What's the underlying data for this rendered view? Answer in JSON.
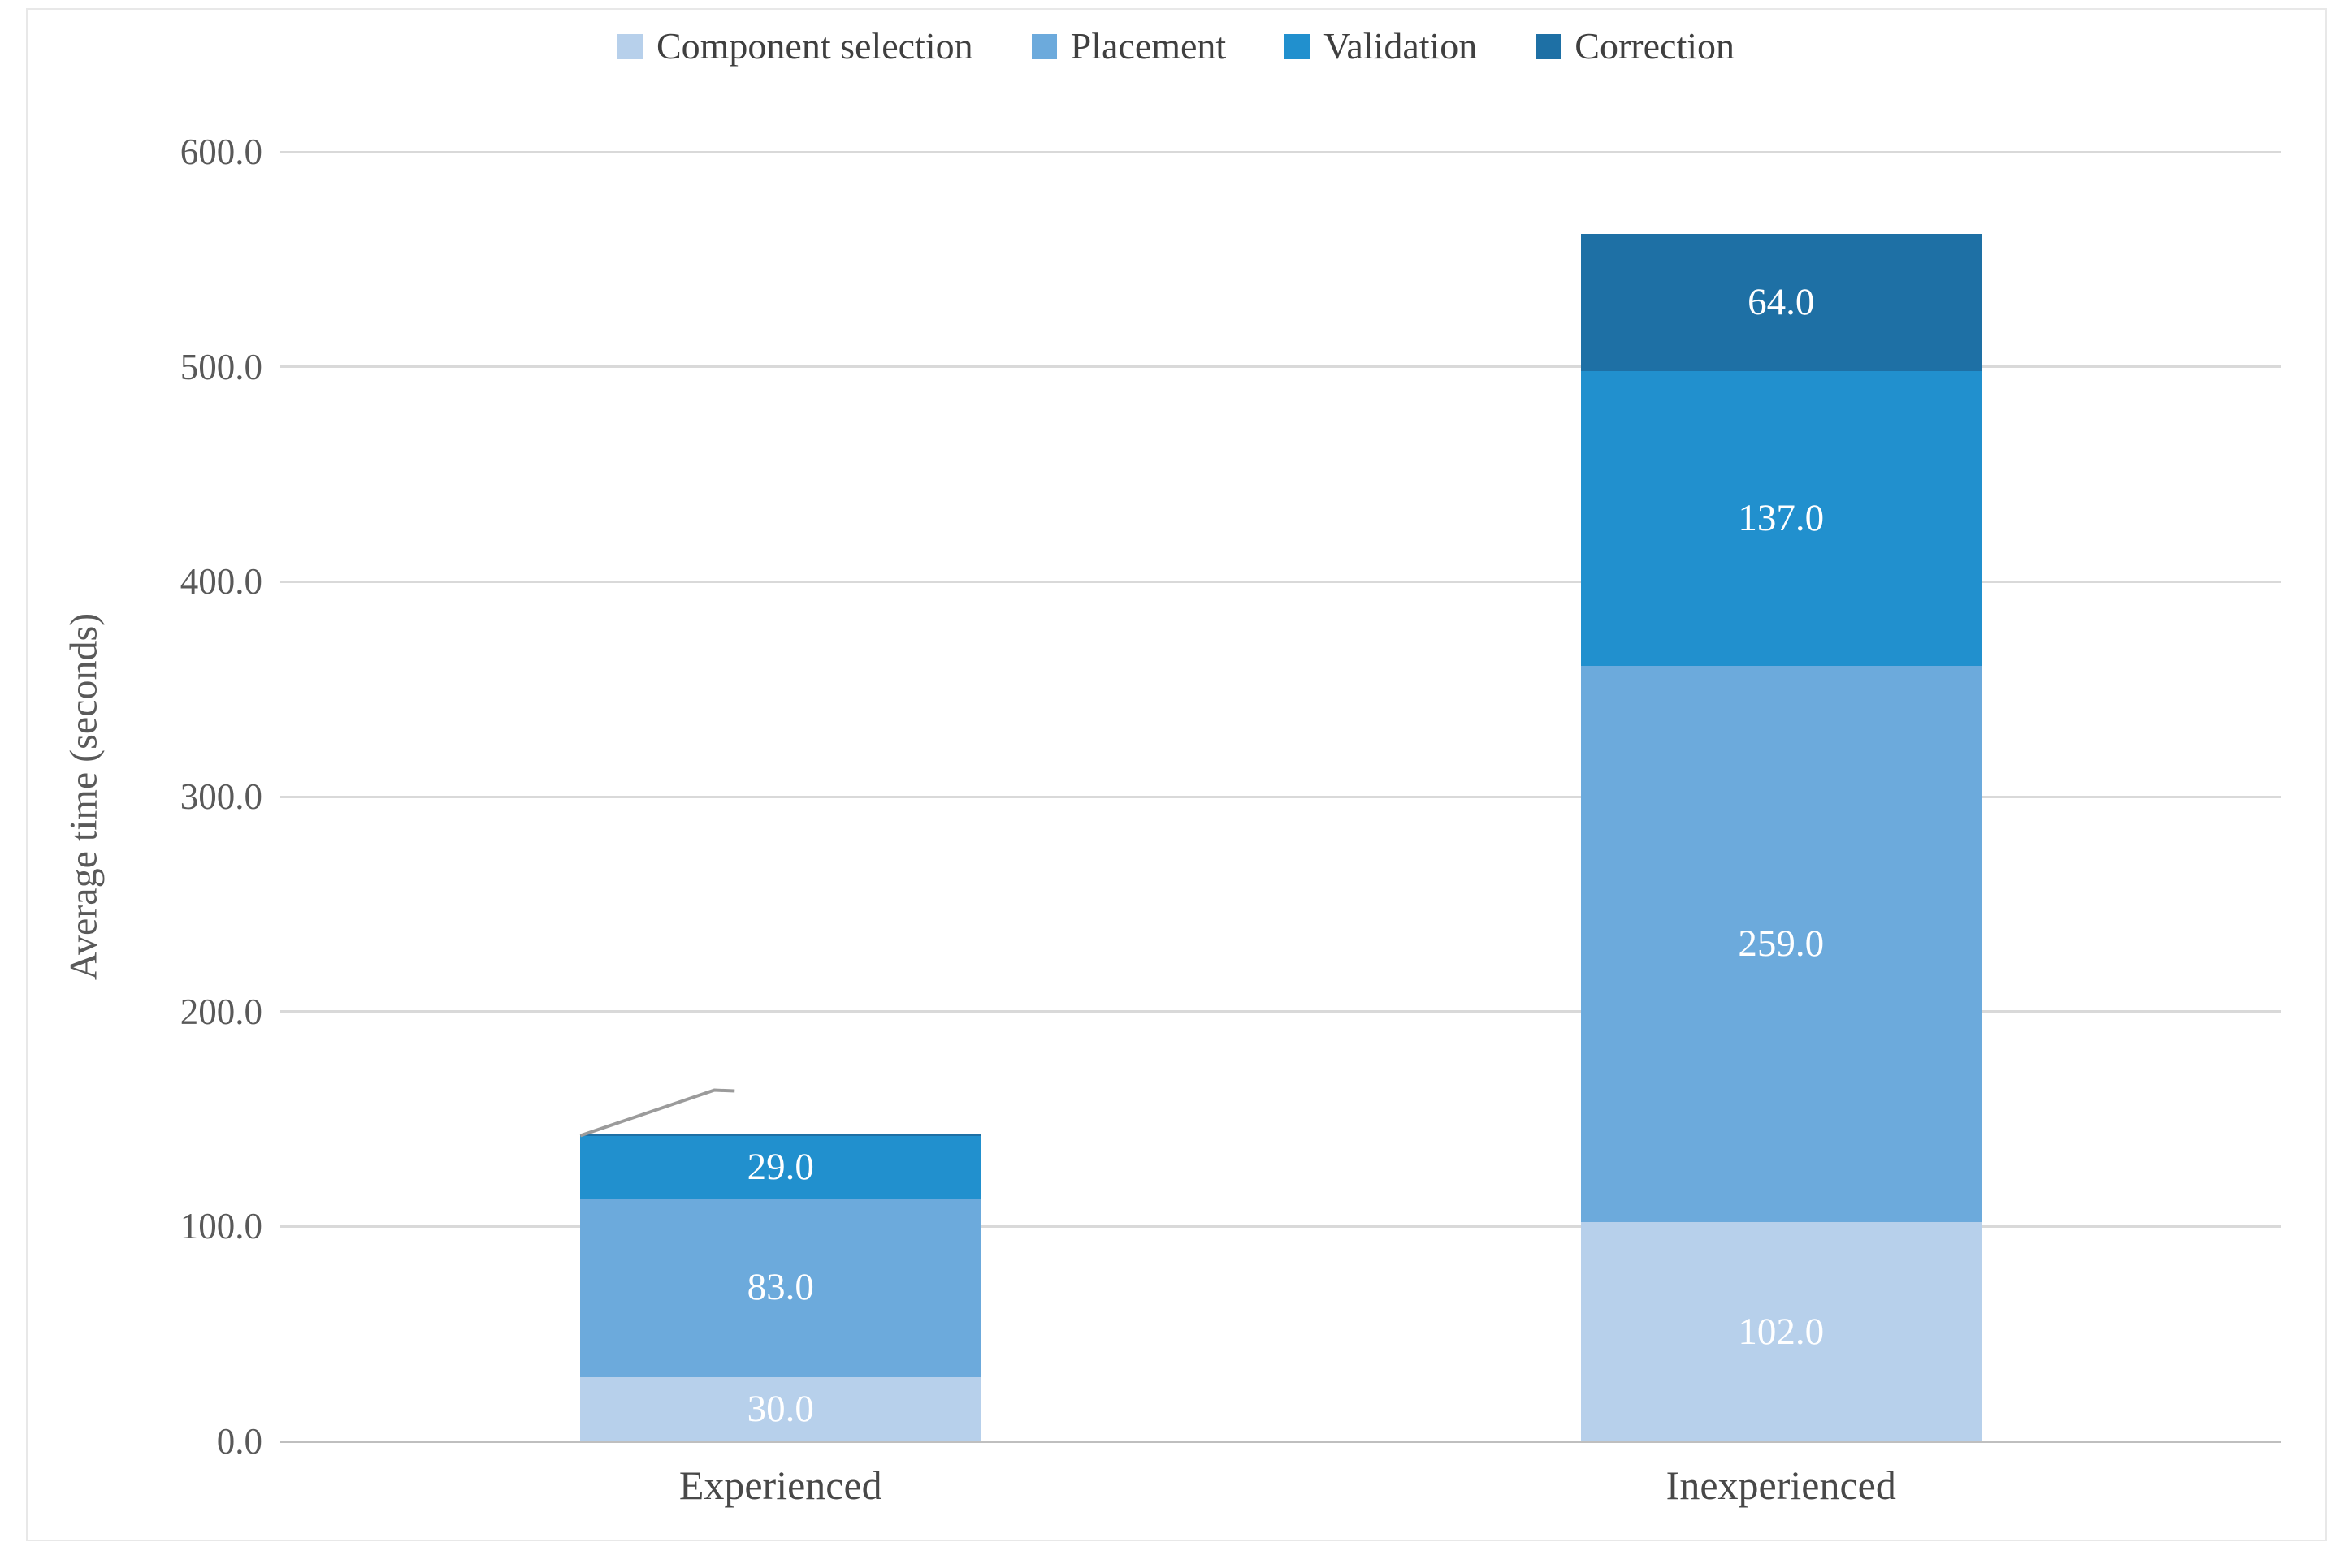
{
  "chart_data": {
    "type": "bar",
    "stacked": true,
    "categories": [
      "Experienced",
      "Inexperienced"
    ],
    "series": [
      {
        "name": "Component selection",
        "color": "#B7D0EB",
        "values": [
          30.0,
          102.0
        ],
        "data_labels": [
          "30.0",
          "102.0"
        ]
      },
      {
        "name": "Placement",
        "color": "#6CAADC",
        "values": [
          83.0,
          259.0
        ],
        "data_labels": [
          "83.0",
          "259.0"
        ]
      },
      {
        "name": "Validation",
        "color": "#2190CE",
        "values": [
          29.0,
          137.0
        ],
        "data_labels": [
          "29.0",
          "137.0"
        ]
      },
      {
        "name": "Correction",
        "color": "#1E70A5",
        "values": [
          1.0,
          64.0
        ],
        "data_labels": [
          "",
          "64.0"
        ]
      }
    ],
    "xlabel": "",
    "ylabel": "Average time (seconds)",
    "ylim": [
      0,
      600
    ],
    "ytick_interval": 100,
    "ytick_labels": [
      "0.0",
      "100.0",
      "200.0",
      "300.0",
      "400.0",
      "500.0",
      "600.0"
    ],
    "grid": true,
    "legend_position": "top",
    "annotations": [
      {
        "type": "leader-line",
        "category": "Experienced",
        "series": "Correction",
        "label": ""
      }
    ]
  },
  "style": {
    "background_color": "#FFFFFF",
    "frame_border_color": "#E8E8E8",
    "gridline_color": "#D9D9D9",
    "axis_line_color": "#BFBFBF",
    "tick_text_color": "#595959",
    "category_text_color": "#484848",
    "legend_text_color": "#3F3F3F",
    "bar_label_color": "#FFFFFF",
    "leader_line_color": "#9B9B9B"
  }
}
